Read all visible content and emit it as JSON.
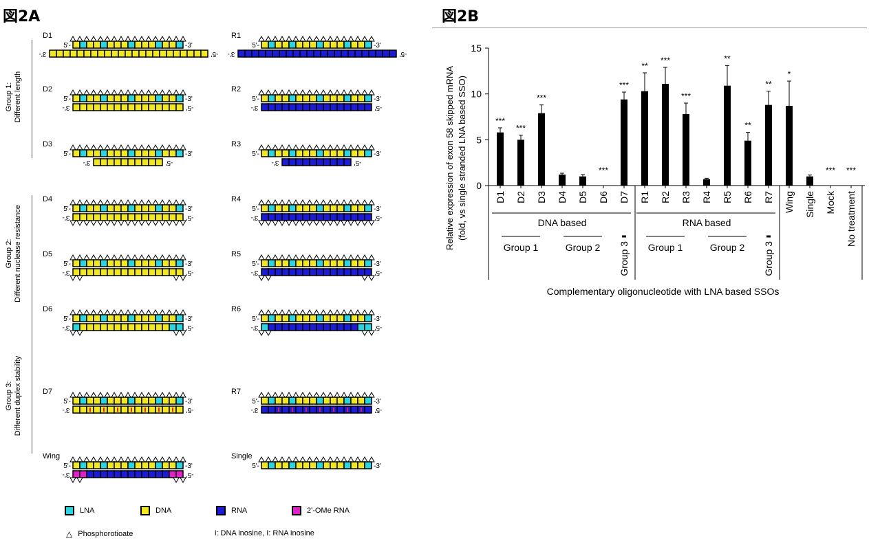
{
  "panel_a": {
    "title": "図2A",
    "groups": [
      {
        "title": "Group 1:",
        "subtitle": "Different length"
      },
      {
        "title": "Group 2:",
        "subtitle": "Different nuclease resistance"
      },
      {
        "title": "Group 3:",
        "subtitle": "Different duplex stability"
      }
    ],
    "labels": {
      "d1": "D1",
      "d2": "D2",
      "d3": "D3",
      "d4": "D4",
      "d5": "D5",
      "d6": "D6",
      "d7": "D7",
      "r1": "R1",
      "r2": "R2",
      "r3": "R3",
      "r4": "R4",
      "r5": "R5",
      "r6": "R6",
      "r7": "R7",
      "wing": "Wing",
      "single": "Single"
    },
    "strand_ends": {
      "five_top": "5'-",
      "three_top": "-3'",
      "three_bottom": "3'-",
      "five_bottom": "-5'"
    },
    "colors": {
      "lna": "#2ad4e0",
      "dna": "#f2e822",
      "rna": "#1c1cd6",
      "ome": "#e020c8",
      "outline": "#000000"
    },
    "legend": {
      "lna": "LNA",
      "dna": "DNA",
      "rna": "RNA",
      "ome": "2'-OMe RNA",
      "pto": "Phosphorotioate",
      "inosine": "i: DNA inosine, I: RNA inosine"
    }
  },
  "panel_b": {
    "title": "図2B"
  },
  "chart_data": {
    "type": "bar",
    "categories": [
      "D1",
      "D2",
      "D3",
      "D4",
      "D5",
      "D6",
      "D7",
      "R1",
      "R2",
      "R3",
      "R4",
      "R5",
      "R6",
      "R7",
      "Wing",
      "Single",
      "Mock",
      "No treatment"
    ],
    "values": [
      5.8,
      5.0,
      7.9,
      1.2,
      1.0,
      0,
      9.4,
      10.3,
      11.1,
      7.8,
      0.7,
      10.9,
      4.9,
      8.8,
      8.7,
      1.0,
      0,
      0
    ],
    "errors": [
      0.5,
      0.5,
      0.9,
      0.15,
      0.2,
      0,
      0.8,
      2.0,
      1.8,
      1.2,
      0.1,
      2.2,
      0.9,
      1.5,
      2.7,
      0.15,
      0,
      0
    ],
    "significance": [
      "***",
      "***",
      "***",
      "",
      "",
      "***",
      "***",
      "**",
      "***",
      "***",
      "",
      "**",
      "**",
      "**",
      "*",
      "",
      "***",
      "***"
    ],
    "ylabel": "Relative expression of exon 58 skipped mRNA",
    "ylabel2": "(fold, vs single stranded LNA based SSO)",
    "xlabel": "Complementary oligonucleotide with LNA based SSOs",
    "yticks": [
      0,
      5,
      10,
      15
    ],
    "ylim": [
      0,
      15
    ],
    "grid": false,
    "bar_color": "#000000",
    "group_labels": {
      "dna_based": "DNA based",
      "rna_based": "RNA based",
      "group1": "Group 1",
      "group2": "Group 2",
      "group3": "Group 3"
    }
  }
}
